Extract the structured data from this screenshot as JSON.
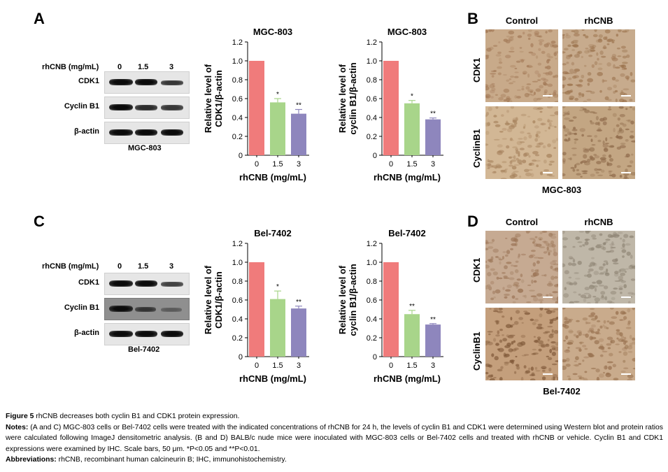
{
  "panels": {
    "A": {
      "letter": "A",
      "wb": {
        "header": "rhCNB (mg/mL)",
        "doses": [
          "0",
          "1.5",
          "3"
        ],
        "rows": [
          "CDK1",
          "Cyclin B1",
          "β-actin"
        ],
        "cell_line": "MGC-803"
      }
    },
    "B": {
      "letter": "B",
      "columns": [
        "Control",
        "rhCNB"
      ],
      "rows": [
        "CDK1",
        "CyclinB1"
      ],
      "cell_line": "MGC-803"
    },
    "C": {
      "letter": "C",
      "wb": {
        "header": "rhCNB (mg/mL)",
        "doses": [
          "0",
          "1.5",
          "3"
        ],
        "rows": [
          "CDK1",
          "Cyclin B1",
          "β-actin"
        ],
        "cell_line": "Bel-7402"
      }
    },
    "D": {
      "letter": "D",
      "columns": [
        "Control",
        "rhCNB"
      ],
      "rows": [
        "CDK1",
        "CyclinB1"
      ],
      "cell_line": "Bel-7402"
    }
  },
  "chart_data": [
    {
      "type": "bar",
      "title": "MGC-803",
      "xlabel": "rhCNB (mg/mL)",
      "ylabel_line1": "Relative level of",
      "ylabel_line2": "CDK1/β-actin",
      "categories": [
        "0",
        "1.5",
        "3"
      ],
      "values": [
        1.0,
        0.56,
        0.44
      ],
      "errors": [
        0,
        0.04,
        0.045
      ],
      "significance": [
        "",
        "*",
        "**"
      ],
      "ylim": [
        0,
        1.2
      ],
      "yticks": [
        "0",
        "0.2",
        "0.4",
        "0.6",
        "0.8",
        "1.0",
        "1.2"
      ],
      "colors": [
        "#f07b7b",
        "#a8d58a",
        "#8e86bd"
      ]
    },
    {
      "type": "bar",
      "title": "MGC-803",
      "xlabel": "rhCNB (mg/mL)",
      "ylabel_line1": "Relative level of",
      "ylabel_line2": "cyclin B1/β-actin",
      "categories": [
        "0",
        "1.5",
        "3"
      ],
      "values": [
        1.0,
        0.55,
        0.38
      ],
      "errors": [
        0,
        0.03,
        0.015
      ],
      "significance": [
        "",
        "*",
        "**"
      ],
      "ylim": [
        0,
        1.2
      ],
      "yticks": [
        "0",
        "0.2",
        "0.4",
        "0.6",
        "0.8",
        "1.0",
        "1.2"
      ],
      "colors": [
        "#f07b7b",
        "#a8d58a",
        "#8e86bd"
      ]
    },
    {
      "type": "bar",
      "title": "Bel-7402",
      "xlabel": "rhCNB (mg/mL)",
      "ylabel_line1": "Relative level of",
      "ylabel_line2": "CDK1/β-actin",
      "categories": [
        "0",
        "1.5",
        "3"
      ],
      "values": [
        1.0,
        0.61,
        0.51
      ],
      "errors": [
        0,
        0.085,
        0.025
      ],
      "significance": [
        "",
        "*",
        "**"
      ],
      "ylim": [
        0,
        1.2
      ],
      "yticks": [
        "0",
        "0.2",
        "0.4",
        "0.6",
        "0.8",
        "1.0",
        "1.2"
      ],
      "colors": [
        "#f07b7b",
        "#a8d58a",
        "#8e86bd"
      ]
    },
    {
      "type": "bar",
      "title": "Bel-7402",
      "xlabel": "rhCNB (mg/mL)",
      "ylabel_line1": "Relative level of",
      "ylabel_line2": "cyclin B1/β-actin",
      "categories": [
        "0",
        "1.5",
        "3"
      ],
      "values": [
        1.0,
        0.45,
        0.34
      ],
      "errors": [
        0,
        0.04,
        0.01
      ],
      "significance": [
        "",
        "**",
        "**"
      ],
      "ylim": [
        0,
        1.2
      ],
      "yticks": [
        "0",
        "0.2",
        "0.4",
        "0.6",
        "0.8",
        "1.0",
        "1.2"
      ],
      "colors": [
        "#f07b7b",
        "#a8d58a",
        "#8e86bd"
      ]
    }
  ],
  "caption": {
    "figure_label": "Figure 5",
    "figure_title": " rhCNB decreases both cyclin B1 and CDK1 protein expression.",
    "notes_label": "Notes:",
    "notes_text": " (A and C) MGC-803 cells or Bel-7402 cells were treated with the indicated concentrations of rhCNB for 24 h, the levels of cyclin B1 and CDK1 were determined using Western blot and protein ratios were calculated following ImageJ densitometric analysis. (B and D) BALB/c nude mice were inoculated with MGC-803 cells or Bel-7402 cells and treated with rhCNB or vehicle. Cyclin B1 and CDK1 expressions were examined by IHC. Scale bars, 50 μm. *P<0.05 and **P<0.01.",
    "abbrev_label": "Abbreviations:",
    "abbrev_text": " rhCNB, recombinant human calcineurin B; IHC, immunohistochemistry."
  }
}
